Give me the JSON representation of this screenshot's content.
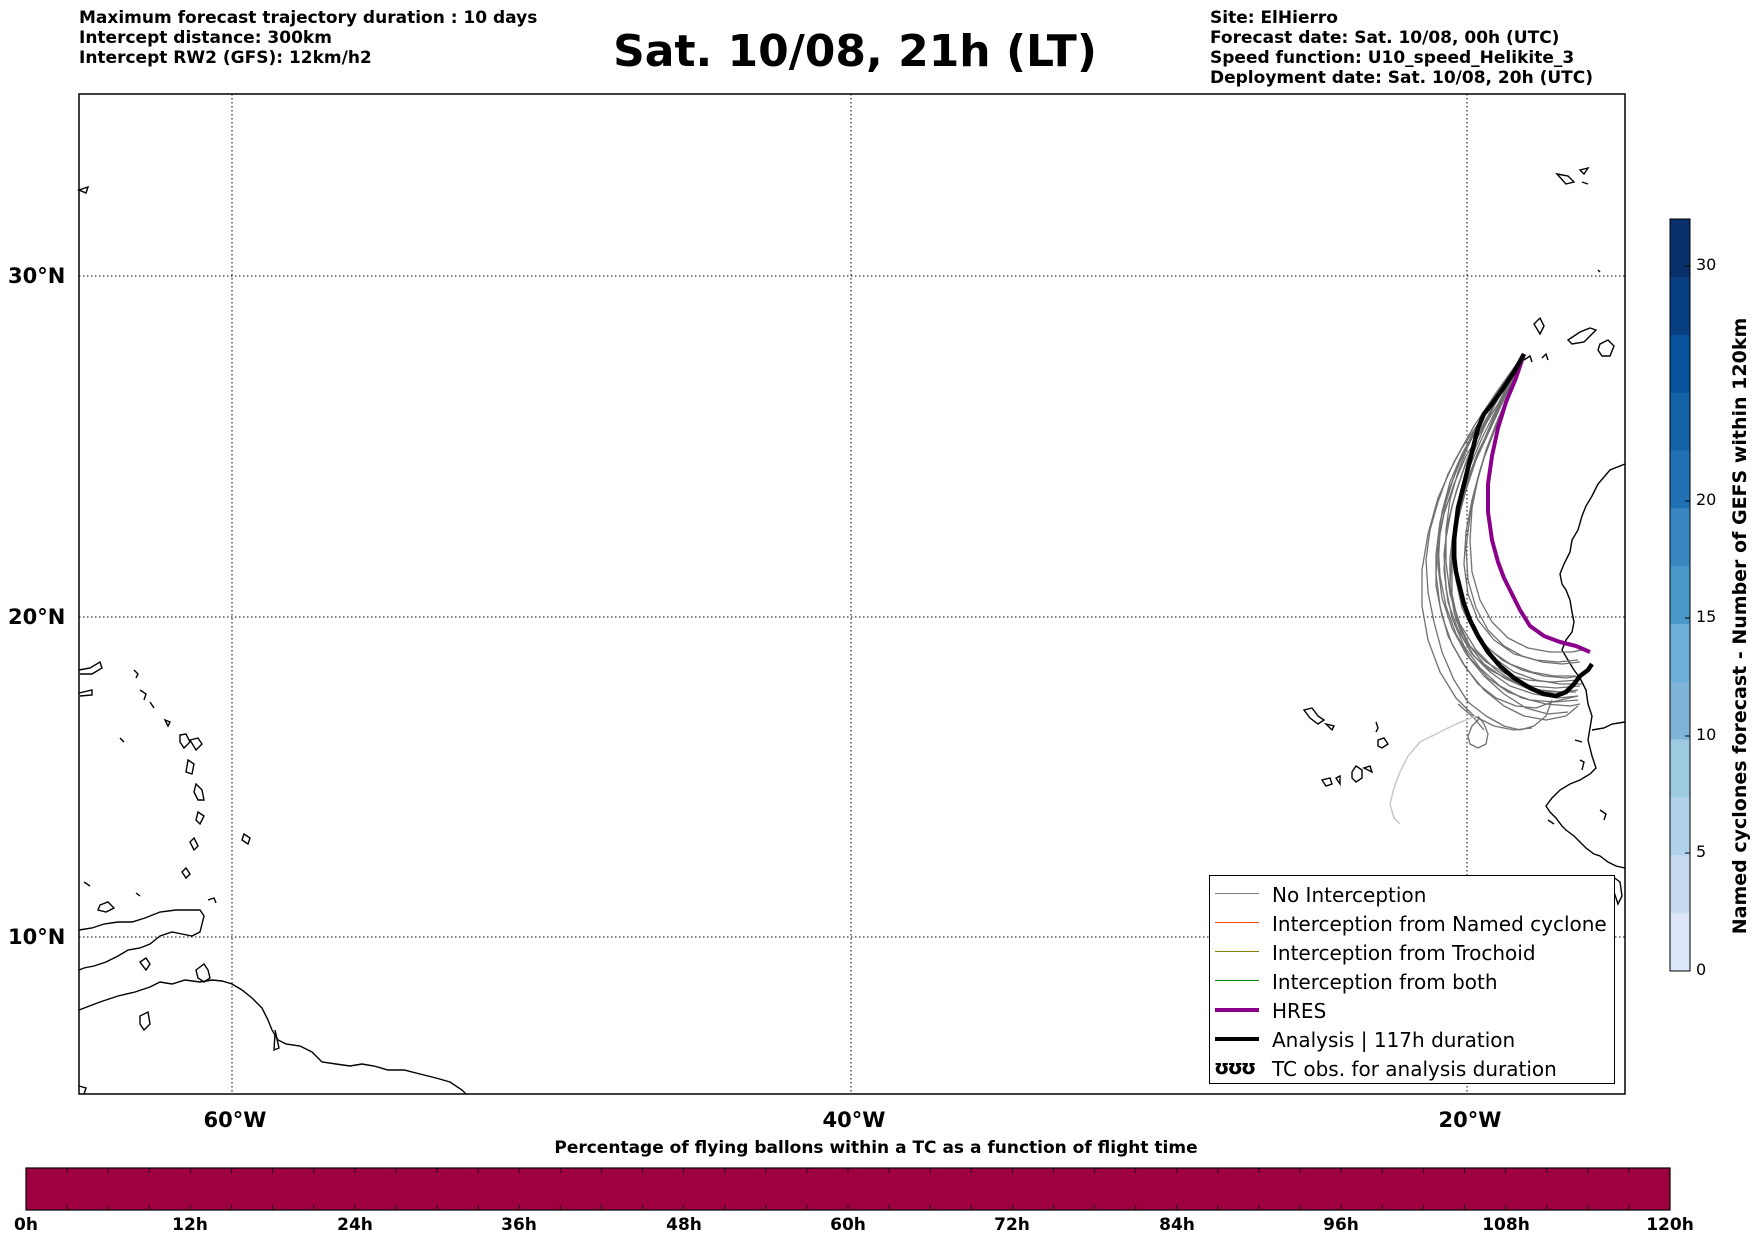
{
  "header": {
    "left_lines": [
      "Maximum forecast trajectory duration : 10 days",
      "Intercept distance: 300km",
      "Intercept RW2 (GFS):  12km/h2"
    ],
    "title": "Sat. 10/08, 21h (LT)",
    "right_lines": [
      "Site: ElHierro",
      "Forecast date: Sat. 10/08, 00h (UTC)",
      "Speed function: U10_speed_Helikite_3",
      "Deployment date: Sat. 10/08, 20h (UTC)"
    ]
  },
  "map": {
    "lat_labels": [
      "30°N",
      "20°N",
      "10°N"
    ],
    "lon_labels": [
      "60°W",
      "40°W",
      "20°W"
    ],
    "grid": "dotted",
    "colors": {
      "ensemble": "#707070",
      "hres": "#8b008b",
      "analysis": "#000000",
      "coast": "#000000"
    }
  },
  "legend": {
    "items": [
      {
        "label": "No Interception",
        "color": "#808080",
        "width": 1.5
      },
      {
        "label": "Interception from Named cyclone",
        "color": "#ff4500",
        "width": 1.5
      },
      {
        "label": "Interception from Trochoid",
        "color": "#808000",
        "width": 1.5
      },
      {
        "label": "Interception from both",
        "color": "#008000",
        "width": 1.5
      },
      {
        "label": "HRES",
        "color": "#8b008b",
        "width": 4
      },
      {
        "label": "Analysis | 117h duration",
        "color": "#000000",
        "width": 4
      }
    ],
    "symbol_label": "TC obs. for analysis duration",
    "symbol_icon": "ʊʊʊ"
  },
  "colorbar": {
    "label": "Named cyclones forecast - Number of GEFS within 120km",
    "ticks": [
      "0",
      "5",
      "10",
      "15",
      "20",
      "30"
    ],
    "colors": [
      "#dbe7f6",
      "#c6dbef",
      "#b2d1ea",
      "#9ecae1",
      "#7fb5d9",
      "#6baed6",
      "#4a98c9",
      "#3a86c1",
      "#2171b5",
      "#1462a8",
      "#08519c",
      "#083f80",
      "#08306b"
    ]
  },
  "percentage_bar": {
    "title": "Percentage of flying ballons within a TC as a function of flight time",
    "color": "#9e0040",
    "hour_labels": [
      "0h",
      "12h",
      "24h",
      "36h",
      "48h",
      "60h",
      "72h",
      "84h",
      "96h",
      "108h",
      "120h"
    ]
  }
}
